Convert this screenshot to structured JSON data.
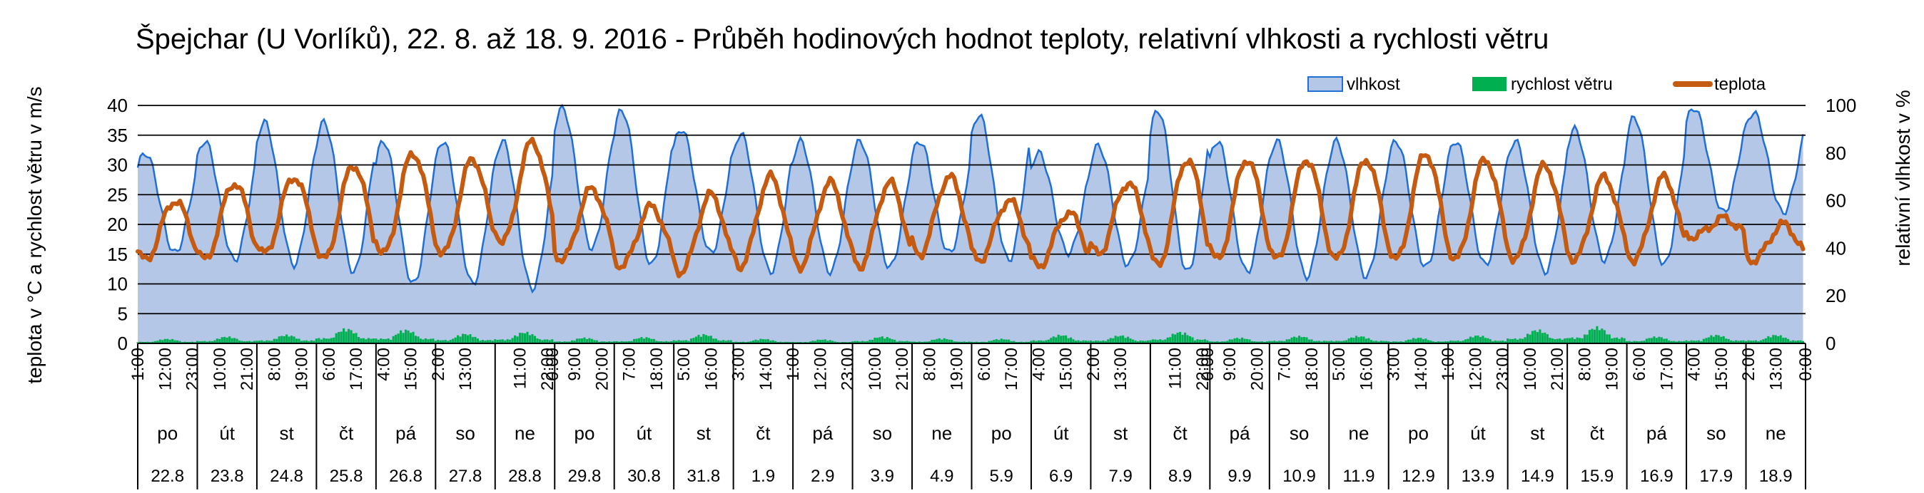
{
  "chart_data": {
    "type": "line",
    "title": "Špejchar (U Vorlíků), 22. 8. až 18. 9. 2016 - Průběh hodinových hodnot teploty, relativní vlhkosti a rychlosti větru",
    "ylabel_left": "teplota v °C a rychlost větru v m/s",
    "ylabel_right": "relativní vlhkost v %",
    "ylim_left": [
      0,
      40
    ],
    "ylim_right": [
      0,
      100
    ],
    "yticks_left": [
      "0",
      "5",
      "10",
      "15",
      "20",
      "25",
      "30",
      "35",
      "40"
    ],
    "yticks_right": [
      "0",
      "20",
      "40",
      "60",
      "80",
      "100"
    ],
    "legend": [
      "vlhkost",
      "rychlost větru",
      "teplota"
    ],
    "legend_position": "top-right",
    "grid": "horizontal",
    "colors": {
      "humidity_fill": "#b4c7e7",
      "humidity_line": "#1f6fd6",
      "wind": "#00b050",
      "temperature": "#c55a11"
    },
    "hour_ticks": [
      [
        "1:00",
        "12:00",
        "23:00"
      ],
      [
        "10:00",
        "21:00"
      ],
      [
        "8:00",
        "19:00"
      ],
      [
        "6:00",
        "17:00"
      ],
      [
        "4:00",
        "15:00"
      ],
      [
        "2:00",
        "13:00"
      ],
      [
        "0:00",
        "11:00",
        "22:00"
      ],
      [
        "9:00",
        "20:00"
      ],
      [
        "7:00",
        "18:00"
      ],
      [
        "5:00",
        "16:00"
      ],
      [
        "3:00",
        "14:00"
      ],
      [
        "1:00",
        "12:00",
        "23:00"
      ],
      [
        "10:00",
        "21:00"
      ],
      [
        "8:00",
        "19:00"
      ],
      [
        "6:00",
        "17:00"
      ],
      [
        "4:00",
        "15:00"
      ],
      [
        "2:00",
        "13:00"
      ],
      [
        "0:00",
        "11:00",
        "22:00"
      ],
      [
        "9:00",
        "20:00"
      ],
      [
        "7:00",
        "18:00"
      ],
      [
        "5:00",
        "16:00"
      ],
      [
        "3:00",
        "14:00"
      ],
      [
        "1:00",
        "12:00",
        "23:00"
      ],
      [
        "10:00",
        "21:00"
      ],
      [
        "8:00",
        "19:00"
      ],
      [
        "6:00",
        "17:00"
      ],
      [
        "4:00",
        "15:00"
      ],
      [
        "2:00",
        "13:00"
      ],
      [
        "0:00"
      ]
    ],
    "days": [
      {
        "weekday": "po",
        "date": "22.8"
      },
      {
        "weekday": "út",
        "date": "23.8"
      },
      {
        "weekday": "st",
        "date": "24.8"
      },
      {
        "weekday": "čt",
        "date": "25.8"
      },
      {
        "weekday": "pá",
        "date": "26.8"
      },
      {
        "weekday": "so",
        "date": "27.8"
      },
      {
        "weekday": "ne",
        "date": "28.8"
      },
      {
        "weekday": "po",
        "date": "29.8"
      },
      {
        "weekday": "út",
        "date": "30.8"
      },
      {
        "weekday": "st",
        "date": "31.8"
      },
      {
        "weekday": "čt",
        "date": "1.9"
      },
      {
        "weekday": "pá",
        "date": "2.9"
      },
      {
        "weekday": "so",
        "date": "3.9"
      },
      {
        "weekday": "ne",
        "date": "4.9"
      },
      {
        "weekday": "po",
        "date": "5.9"
      },
      {
        "weekday": "út",
        "date": "6.9"
      },
      {
        "weekday": "st",
        "date": "7.9"
      },
      {
        "weekday": "čt",
        "date": "8.9"
      },
      {
        "weekday": "pá",
        "date": "9.9"
      },
      {
        "weekday": "so",
        "date": "10.9"
      },
      {
        "weekday": "ne",
        "date": "11.9"
      },
      {
        "weekday": "po",
        "date": "12.9"
      },
      {
        "weekday": "út",
        "date": "13.9"
      },
      {
        "weekday": "st",
        "date": "14.9"
      },
      {
        "weekday": "čt",
        "date": "15.9"
      },
      {
        "weekday": "pá",
        "date": "16.9"
      },
      {
        "weekday": "so",
        "date": "17.9"
      },
      {
        "weekday": "ne",
        "date": "18.9"
      }
    ],
    "daily_summary": {
      "note_units": "temperature °C (min, max), humidity % (min, max), wind m/s (peak)",
      "temperature_min": [
        14,
        14,
        15,
        14,
        15,
        15,
        17,
        14,
        13,
        12,
        13,
        13,
        13,
        15,
        14,
        13,
        15,
        13,
        14,
        14,
        14,
        14,
        14,
        14,
        14,
        14,
        18,
        14
      ],
      "temperature_max": [
        24,
        27,
        28,
        30,
        32,
        31,
        34,
        26,
        23,
        25,
        28,
        27,
        27,
        28,
        24,
        22,
        27,
        31,
        31,
        31,
        31,
        32,
        31,
        30,
        28,
        28,
        21,
        20
      ],
      "humidity_min": [
        38,
        35,
        33,
        30,
        25,
        25,
        23,
        40,
        33,
        38,
        30,
        30,
        32,
        38,
        35,
        38,
        33,
        30,
        30,
        28,
        28,
        32,
        33,
        30,
        35,
        33,
        55,
        55
      ],
      "humidity_max": [
        80,
        85,
        93,
        93,
        85,
        85,
        85,
        99,
        98,
        90,
        88,
        85,
        85,
        85,
        96,
        80,
        83,
        98,
        85,
        85,
        85,
        85,
        85,
        85,
        90,
        95,
        99,
        97
      ],
      "wind_peak": [
        0.8,
        1.2,
        1.5,
        2.6,
        2.4,
        1.7,
        2.0,
        1.0,
        1.1,
        1.6,
        0.8,
        0.7,
        1.2,
        0.9,
        0.8,
        1.5,
        1.4,
        2.0,
        1.0,
        1.3,
        1.3,
        1.0,
        1.4,
        2.4,
        2.9,
        1.2,
        1.5,
        1.5
      ]
    }
  }
}
